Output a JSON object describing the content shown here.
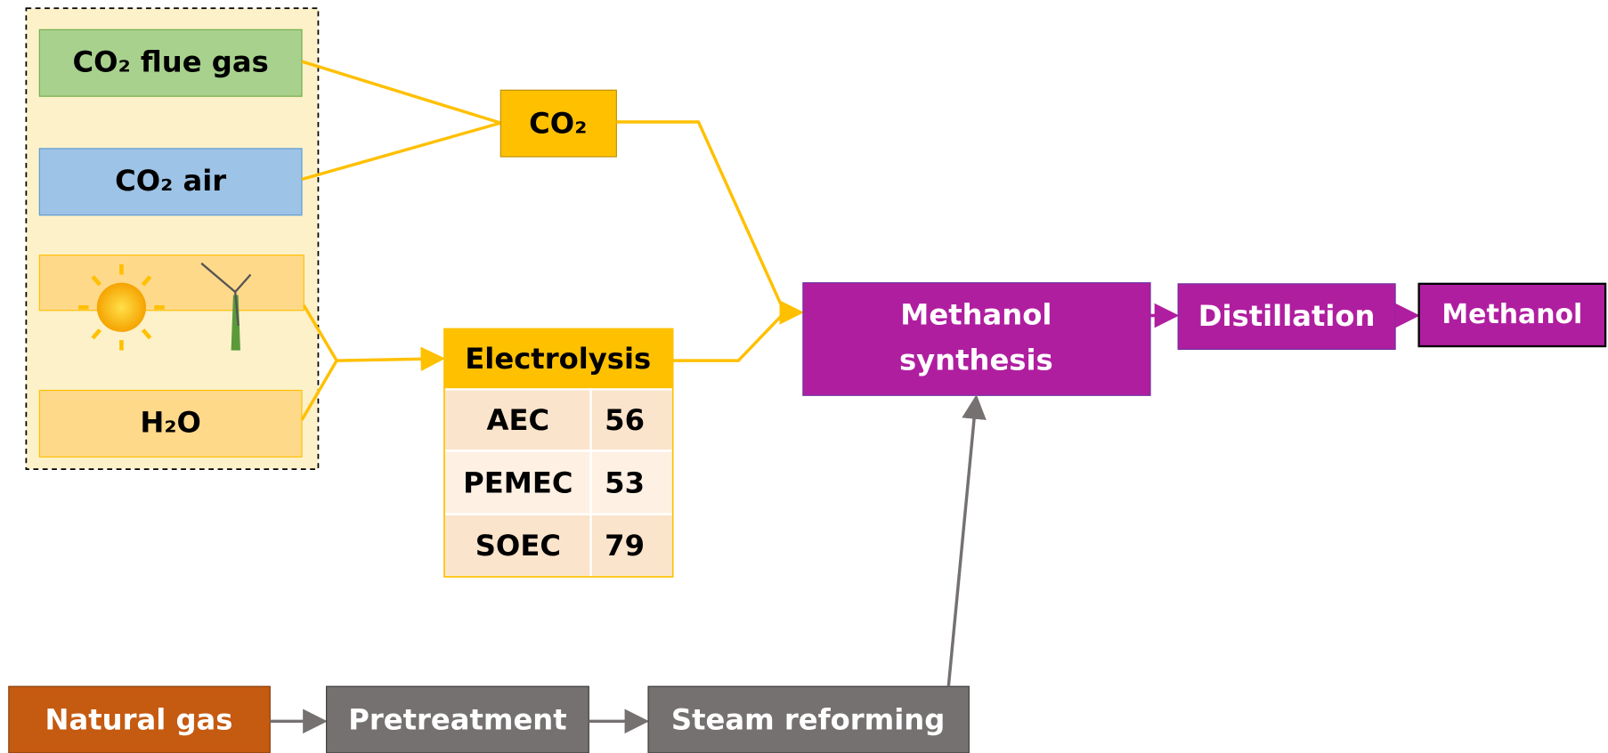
{
  "inputs": [
    "CO₂ flue gas",
    "CO₂ air",
    "H₂O"
  ],
  "co2": "CO₂",
  "electrolysis": {
    "title": "Electrolysis",
    "rows": [
      [
        "AEC",
        56
      ],
      [
        "PEMEC",
        53
      ],
      [
        "SOEC",
        79
      ]
    ]
  },
  "methanol_synthesis": [
    "Methanol",
    "synthesis"
  ],
  "distillation": "Distillation",
  "methanol": "Methanol",
  "natural_gas": "Natural gas",
  "pretreatment": "Pretreatment",
  "steam_reforming": "Steam reforming"
}
